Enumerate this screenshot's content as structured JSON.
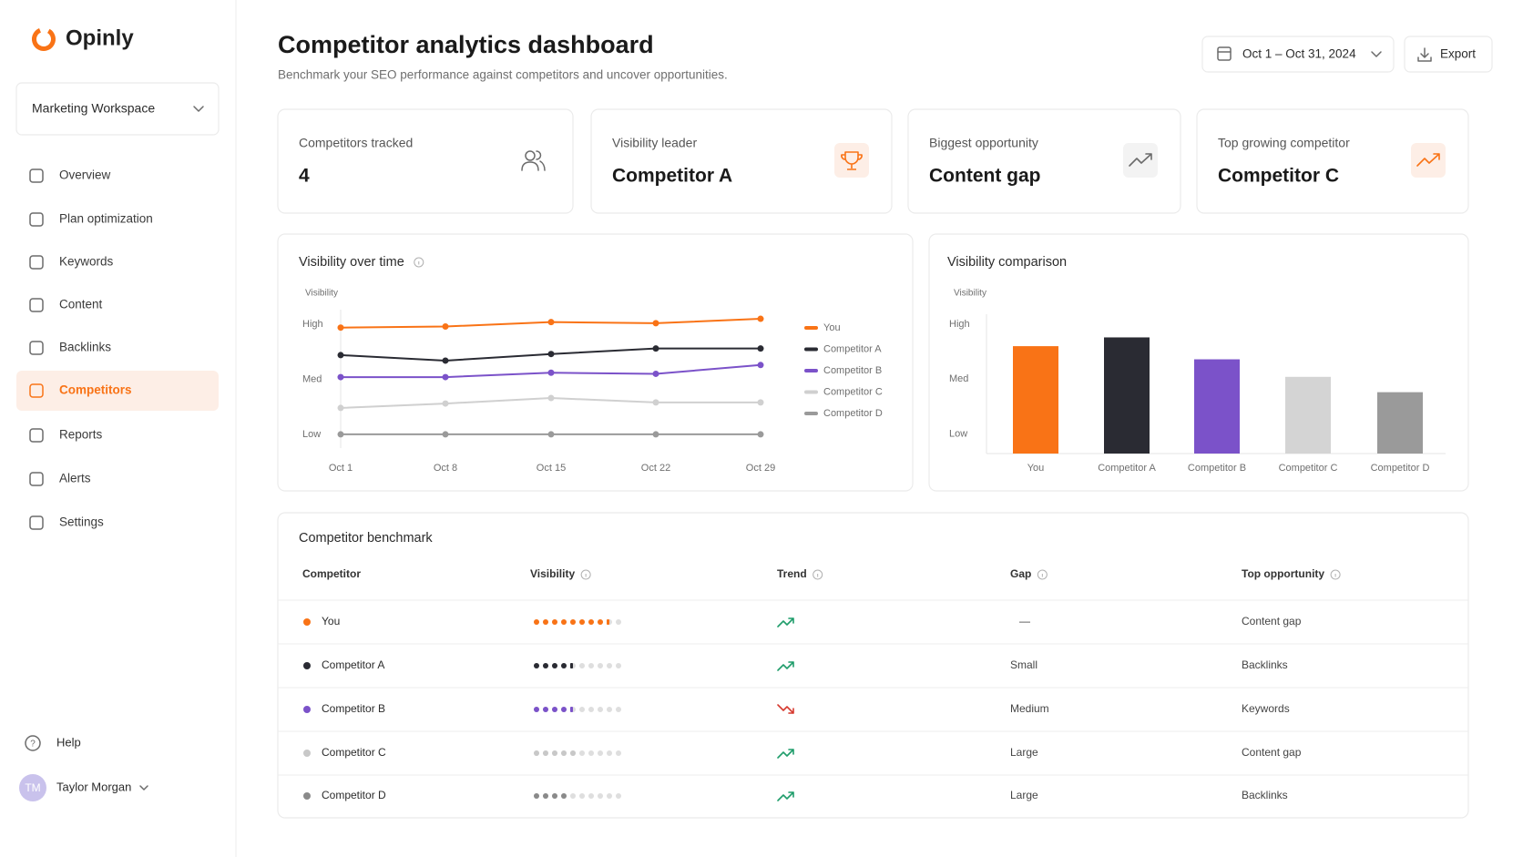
{
  "brand": "Opinly",
  "workspace": "Marketing Workspace",
  "nav": [
    {
      "label": "Overview"
    },
    {
      "label": "Plan optimization"
    },
    {
      "label": "Keywords"
    },
    {
      "label": "Content"
    },
    {
      "label": "Backlinks"
    },
    {
      "label": "Competitors",
      "active": true
    },
    {
      "label": "Reports"
    },
    {
      "label": "Alerts"
    },
    {
      "label": "Settings"
    }
  ],
  "help": "Help",
  "user": {
    "initials": "TM",
    "name": "Taylor Morgan"
  },
  "header": {
    "title": "Competitor analytics dashboard",
    "subtitle": "Benchmark your SEO performance against competitors and uncover opportunities.",
    "date_range": "Oct 1 – Oct 31, 2024",
    "export": "Export"
  },
  "kpis": [
    {
      "label": "Competitors tracked",
      "value": 4
    },
    {
      "label": "Visibility leader",
      "value": "Competitor A"
    },
    {
      "label": "Biggest opportunity",
      "value": "Content gap"
    },
    {
      "label": "Top growing competitor",
      "value": "Competitor C"
    }
  ],
  "line_chart": {
    "type": "line",
    "title": "Visibility over time",
    "y_label": "Visibility",
    "categories": [
      "Oct 1",
      "Oct 8",
      "Oct 15",
      "Oct 22",
      "Oct 29"
    ],
    "series": [
      {
        "name": "You",
        "color": "#f97316",
        "values": [
          97,
          98,
          102,
          101,
          105
        ]
      },
      {
        "name": "Competitor A",
        "color": "#2a2b33",
        "values": [
          72,
          67,
          73,
          78,
          78
        ]
      },
      {
        "name": "Competitor B",
        "color": "#7b52c9",
        "values": [
          52,
          52,
          56,
          55,
          63
        ]
      },
      {
        "name": "Competitor C",
        "color": "#d0d0d0",
        "values": [
          24,
          28,
          33,
          29,
          29
        ]
      },
      {
        "name": "Competitor D",
        "color": "#9a9a9a",
        "values": [
          0,
          0,
          0,
          0,
          0
        ]
      }
    ],
    "ylim": [
      -10,
      110
    ],
    "yticks": [
      {
        "value": 0,
        "label": "Low"
      },
      {
        "value": 50,
        "label": "Med"
      },
      {
        "value": 100,
        "label": "High"
      }
    ]
  },
  "bar_chart": {
    "type": "bar",
    "title": "Visibility comparison",
    "y_label": "Visibility",
    "categories": [
      "You",
      "Competitor A",
      "Competitor B",
      "Competitor C",
      "Competitor D"
    ],
    "values": [
      80,
      88,
      68,
      52,
      38
    ],
    "colors": [
      "#f97316",
      "#2a2b33",
      "#7b52c9",
      "#d4d4d4",
      "#9a9a9a"
    ],
    "ylim": [
      -18,
      110
    ],
    "yticks": [
      {
        "value": 0,
        "label": "Low"
      },
      {
        "value": 50,
        "label": "Med"
      },
      {
        "value": 100,
        "label": "High"
      }
    ]
  },
  "table": {
    "title": "Competitor benchmark",
    "columns": [
      "Competitor",
      "Visibility",
      "Trend",
      "Gap",
      "Top opportunity"
    ],
    "visibility_scale": 10,
    "rows": [
      {
        "name": "You",
        "color": "#f97316",
        "visibility": 8.5,
        "trend": "up",
        "gap": "—",
        "opportunity": "Content gap"
      },
      {
        "name": "Competitor A",
        "color": "#2a2b33",
        "visibility": 4.5,
        "trend": "up",
        "gap": "Small",
        "opportunity": "Backlinks"
      },
      {
        "name": "Competitor B",
        "color": "#7b52c9",
        "visibility": 4.5,
        "trend": "down",
        "gap": "Medium",
        "opportunity": "Keywords"
      },
      {
        "name": "Competitor C",
        "color": "#c8c8c8",
        "visibility": 5,
        "trend": "up",
        "gap": "Large",
        "opportunity": "Content gap"
      },
      {
        "name": "Competitor D",
        "color": "#8a8a8a",
        "visibility": 4,
        "trend": "up",
        "gap": "Large",
        "opportunity": "Backlinks"
      }
    ]
  }
}
